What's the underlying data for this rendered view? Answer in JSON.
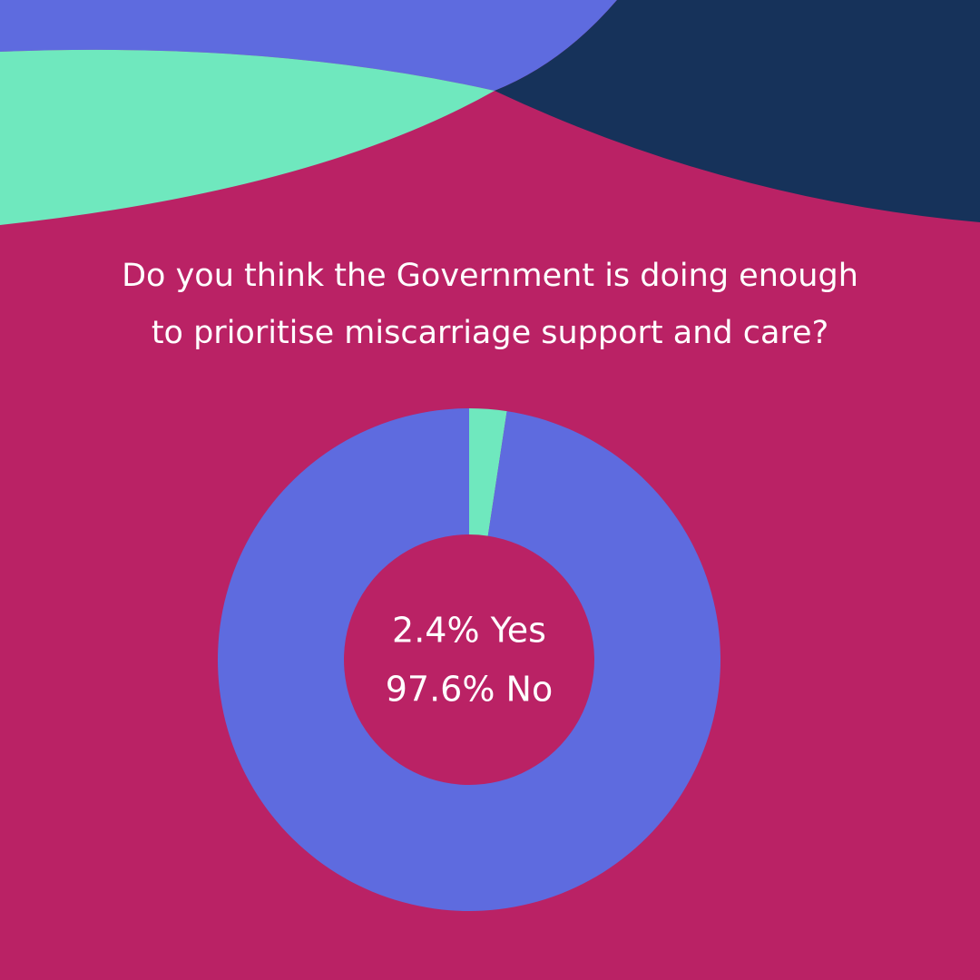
{
  "chart_data": {
    "type": "donut",
    "title": "Do you think the Government is doing enough\nto prioritise miscarriage support and care?",
    "values": [
      2.4,
      97.6
    ],
    "value_labels": [
      "2.4% Yes",
      "97.6% No"
    ],
    "colors": [
      "#6fe8be",
      "#5e6bdf"
    ]
  }
}
